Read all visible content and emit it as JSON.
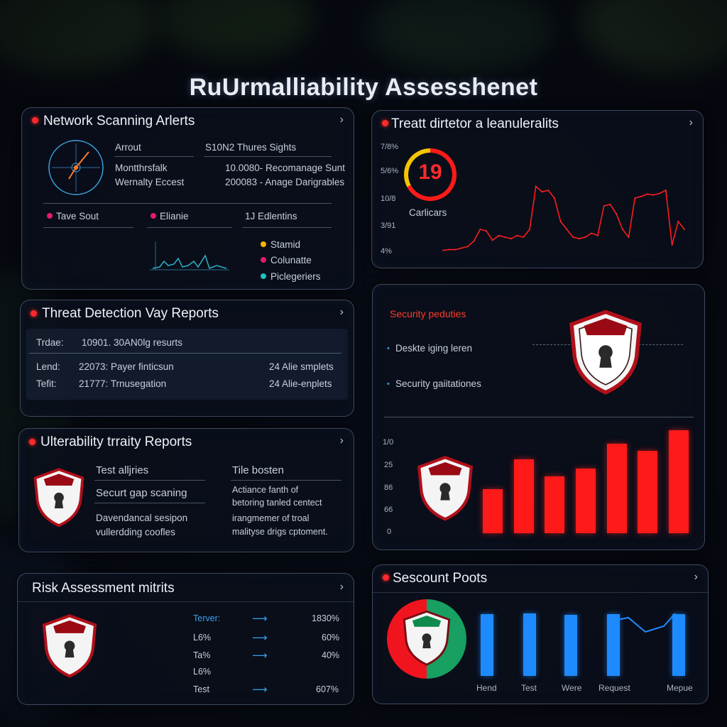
{
  "page_title": "RuUrmalliability Assesshenet",
  "colors": {
    "accent_red": "#ff2a2a",
    "accent_blue": "#1d8bff",
    "dot_yellow": "#f5b400",
    "dot_pink": "#e8196f",
    "dot_teal": "#1ec2c0"
  },
  "network_scanning": {
    "title": "Network Scanning Arlerts",
    "rows": [
      {
        "label": "Arrout",
        "value": "S10N2 Thures Sights"
      },
      {
        "label": "Montthrsfalk",
        "value": "10.0080- Recomanage Sunt"
      },
      {
        "label": "Wernalty Eccest",
        "value": "200083 - Anage Darigrables"
      }
    ],
    "tabs": [
      "Tave Sout",
      "Elianie",
      "1J Edlentins"
    ],
    "legend": [
      "Stamid",
      "Colunatte",
      "Piclegeriers"
    ]
  },
  "threat_detection_top": {
    "title": "Treatt dirtetor a leanuleralits",
    "y_ticks": [
      "7/8%",
      "5/6%",
      "10/8",
      "3/91",
      "4%"
    ],
    "gauge_value": "19",
    "gauge_label": "Carlicars"
  },
  "threat_reports": {
    "title": "Threat Detection Vay Reports",
    "header": {
      "label": "Trdae:",
      "text": "10901. 30AN0lg resurts"
    },
    "rows": [
      {
        "label": "Lend:",
        "text": "22073: Payer finticsun",
        "right": "24 Alie smplets"
      },
      {
        "label": "Tefit:",
        "text": "21777: Trnusegation",
        "right": "24 Alie-enplets"
      }
    ]
  },
  "security_panel": {
    "title": "Security peduties",
    "items": [
      "Deskte iging leren",
      "Security gaiitationes"
    ],
    "y_ticks": [
      "1/0",
      "25",
      "86",
      "66",
      "0"
    ]
  },
  "chart_data": [
    {
      "type": "line",
      "title": "Treatt dirtetor a leanuleralits",
      "y_ticks": [
        "7/8%",
        "5/6%",
        "10/8",
        "3/91",
        "4%"
      ],
      "x": [
        0,
        1,
        2,
        3,
        4,
        5,
        6,
        7,
        8,
        9,
        10,
        11,
        12,
        13,
        14,
        15,
        16,
        17,
        18,
        19,
        20,
        21,
        22,
        23,
        24,
        25,
        26,
        27,
        28,
        29,
        30,
        31,
        32,
        33,
        34,
        35,
        36,
        37,
        38,
        39
      ],
      "values": [
        3,
        4,
        4,
        6,
        8,
        15,
        30,
        28,
        16,
        22,
        20,
        18,
        22,
        20,
        30,
        85,
        78,
        80,
        70,
        40,
        30,
        20,
        18,
        20,
        25,
        22,
        60,
        62,
        50,
        30,
        20,
        70,
        72,
        75,
        74,
        76,
        80,
        10,
        40,
        30
      ]
    },
    {
      "type": "bar",
      "y_ticks": [
        "1/0",
        "25",
        "86",
        "66",
        "0"
      ],
      "values": [
        43,
        72,
        55,
        63,
        87,
        80,
        100
      ],
      "ylim": [
        0,
        100
      ]
    },
    {
      "type": "bar",
      "title": "Sescount Poots",
      "categories": [
        "Hend",
        "Test",
        "Were",
        "Request",
        "Mepue"
      ],
      "values": [
        87,
        88,
        86,
        87,
        87
      ],
      "ylim": [
        0,
        100
      ]
    }
  ],
  "vulnerability_reports": {
    "title": "Ulterability trraity Reports",
    "col1": [
      "Test alljries",
      "Securt gap scaning",
      "Davendancal sesipon",
      "vullerdding coofles"
    ],
    "col2": [
      "Tile bosten",
      "Actiance fanth of",
      "betoring tanled centect",
      "irangmemer of troal",
      "malityse drigs cptoment."
    ]
  },
  "risk_assessment": {
    "title": "Risk Assessment mitrits",
    "rows": [
      {
        "label": "Terver:",
        "value": "1830%"
      },
      {
        "label": "L6%",
        "value": "60%"
      },
      {
        "label": "Ta%",
        "value": "40%"
      },
      {
        "label": "L6%",
        "value": ""
      },
      {
        "label": "Test",
        "value": "607%"
      }
    ]
  },
  "security_posts": {
    "title": "Sescount Poots",
    "categories": [
      "Hend",
      "Test",
      "Were",
      "Request",
      "Mepue"
    ]
  }
}
